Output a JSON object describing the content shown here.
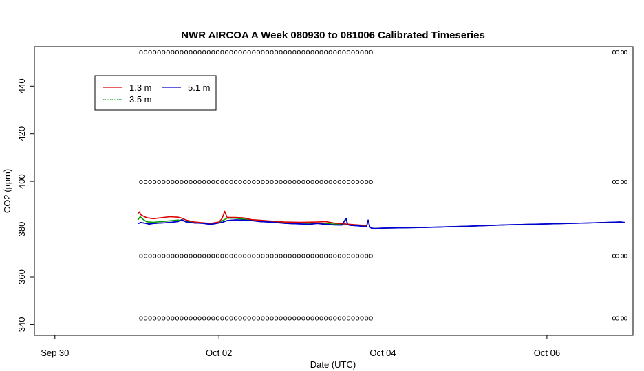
{
  "chart_data": {
    "type": "line",
    "title": "NWR AIRCOA A  Week 080930 to 081006  Calibrated Timeseries",
    "xlabel": "Date (UTC)",
    "ylabel": "CO2 (ppm)",
    "x_unit": "days after Sep 30 00:00 UTC",
    "xlim": [
      -0.25,
      7.05
    ],
    "ylim": [
      335.5,
      456.5
    ],
    "x_ticks": [
      {
        "value": 0,
        "label": "Sep 30"
      },
      {
        "value": 2,
        "label": "Oct 02"
      },
      {
        "value": 4,
        "label": "Oct 04"
      },
      {
        "value": 6,
        "label": "Oct 06"
      }
    ],
    "y_ticks": [
      340,
      360,
      380,
      400,
      420,
      440
    ],
    "grid": false,
    "legend_position": "top-left",
    "legend": [
      {
        "name": "1.3 m",
        "color": "#dd0000"
      },
      {
        "name": "3.5 m",
        "color": "#009900"
      },
      {
        "name": "5.1 m",
        "color": "#0000cc"
      }
    ],
    "series": [
      {
        "name": "5.1 m",
        "color": "#0000cc",
        "x": [
          1.01,
          1.05,
          1.1,
          1.15,
          1.2,
          1.3,
          1.4,
          1.5,
          1.55,
          1.6,
          1.7,
          1.8,
          1.9,
          1.95,
          2.0,
          2.05,
          2.1,
          2.2,
          2.3,
          2.4,
          2.5,
          2.6,
          2.7,
          2.8,
          2.9,
          3.0,
          3.1,
          3.2,
          3.3,
          3.4,
          3.5,
          3.55,
          3.57,
          3.6,
          3.7,
          3.75,
          3.8,
          3.82,
          3.84,
          3.86,
          3.9,
          4.0,
          4.5,
          5.0,
          5.5,
          6.0,
          6.5,
          6.9,
          6.95
        ],
        "y": [
          382.3,
          382.8,
          382.5,
          382.1,
          382.4,
          382.6,
          382.8,
          383.2,
          384.0,
          383.0,
          382.6,
          382.5,
          382.0,
          382.3,
          382.6,
          383.0,
          383.6,
          383.9,
          383.8,
          383.6,
          383.2,
          383.0,
          382.8,
          382.5,
          382.3,
          382.2,
          382.0,
          382.4,
          382.0,
          381.8,
          381.7,
          384.5,
          381.9,
          381.6,
          381.4,
          381.2,
          381.0,
          383.8,
          381.0,
          380.4,
          380.3,
          380.4,
          380.7,
          381.2,
          381.8,
          382.2,
          382.6,
          383.0,
          382.8
        ]
      },
      {
        "name": "3.5 m",
        "color": "#009900",
        "x": [
          1.01,
          1.04,
          1.08,
          1.12,
          1.2,
          1.3,
          1.4,
          1.5,
          1.6,
          1.7,
          1.8,
          1.9,
          2.0,
          2.05,
          2.1,
          2.2,
          2.3,
          2.4,
          2.6,
          2.8,
          3.0,
          3.2,
          3.4,
          3.6,
          3.8
        ],
        "y": [
          383.8,
          385.2,
          384.0,
          383.1,
          382.9,
          383.2,
          383.5,
          383.8,
          383.3,
          382.8,
          382.6,
          382.3,
          382.9,
          383.7,
          384.6,
          384.6,
          384.2,
          383.8,
          383.2,
          382.8,
          382.6,
          382.5,
          382.1,
          381.9,
          381.3
        ]
      },
      {
        "name": "1.3 m",
        "color": "#dd0000",
        "x": [
          1.01,
          1.03,
          1.05,
          1.08,
          1.12,
          1.2,
          1.3,
          1.4,
          1.5,
          1.55,
          1.6,
          1.7,
          1.8,
          1.9,
          2.0,
          2.04,
          2.07,
          2.1,
          2.2,
          2.3,
          2.4,
          2.6,
          2.8,
          3.0,
          3.2,
          3.3,
          3.4,
          3.6,
          3.8
        ],
        "y": [
          386.5,
          387.3,
          386.0,
          385.4,
          384.8,
          384.4,
          384.8,
          385.2,
          385.0,
          384.6,
          383.8,
          383.0,
          382.7,
          382.4,
          383.0,
          384.5,
          387.5,
          384.9,
          384.9,
          384.7,
          384.0,
          383.5,
          383.0,
          382.9,
          383.0,
          383.2,
          382.6,
          382.0,
          381.5
        ]
      }
    ],
    "calibration_marks": {
      "symbol": "o",
      "levels": [
        454.5,
        400.0,
        369.0,
        342.8
      ],
      "x_start": 1.05,
      "x_end": 3.87,
      "x_step": 0.055,
      "late_x": [
        6.82,
        6.86,
        6.92,
        6.96
      ]
    }
  }
}
